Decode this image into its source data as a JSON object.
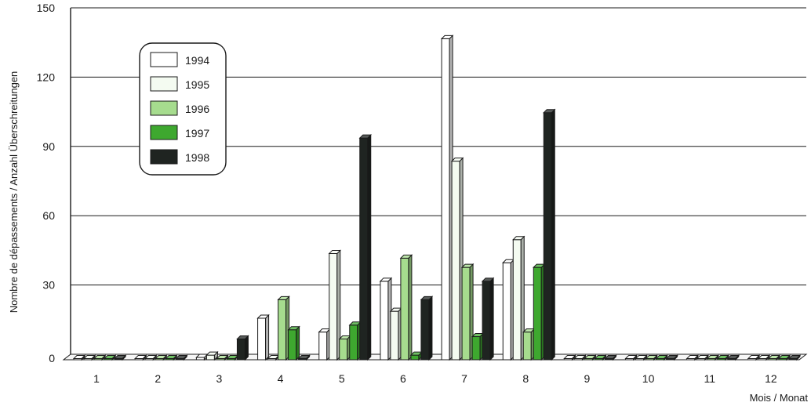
{
  "chart_data": {
    "type": "bar",
    "categories": [
      "1",
      "2",
      "3",
      "4",
      "5",
      "6",
      "7",
      "8",
      "9",
      "10",
      "11",
      "12"
    ],
    "ylabel": "Nombre de dépassements / Anzahl Überschreitungen",
    "xlabel": "Mois / Monat",
    "ylim": [
      0,
      150
    ],
    "yticks": [
      0,
      30,
      60,
      90,
      120,
      150
    ],
    "grid": true,
    "legend_position": "top-left",
    "series": [
      {
        "name": "1994",
        "color": "#ffffff",
        "values": [
          0,
          0,
          1,
          18,
          12,
          34,
          139,
          42,
          0,
          0,
          0,
          0
        ]
      },
      {
        "name": "1995",
        "color": "#f4fbf1",
        "values": [
          0,
          0,
          2,
          0,
          46,
          21,
          86,
          52,
          0,
          0,
          0,
          0
        ]
      },
      {
        "name": "1996",
        "color": "#a6dc8e",
        "values": [
          0,
          0,
          0,
          26,
          9,
          44,
          40,
          12,
          0,
          0,
          0,
          0
        ]
      },
      {
        "name": "1997",
        "color": "#3ea82f",
        "values": [
          0,
          0,
          0,
          13,
          15,
          2,
          10,
          40,
          0,
          0,
          0,
          0
        ]
      },
      {
        "name": "1998",
        "color": "#1f2421",
        "values": [
          0,
          0,
          9,
          0,
          96,
          26,
          34,
          107,
          0,
          0,
          0,
          0
        ]
      }
    ]
  }
}
